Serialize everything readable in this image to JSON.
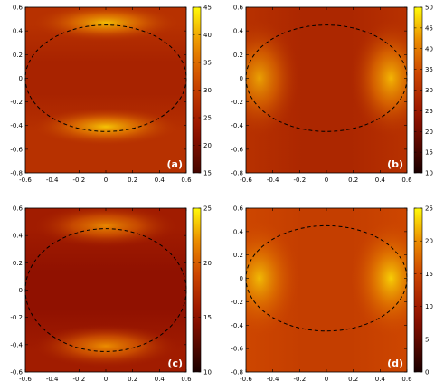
{
  "chart_data": [
    {
      "type": "heatmap",
      "panel_label": "(a)",
      "xlim": [
        -0.6,
        0.6
      ],
      "ylim": [
        -0.8,
        0.6
      ],
      "xticks": [
        "-0.6",
        "-0.4",
        "-0.2",
        "0",
        "0.2",
        "0.4",
        "0.6"
      ],
      "yticks": [
        "0.6",
        "0.4",
        "0.2",
        "0",
        "-0.2",
        "-0.4",
        "-0.6",
        "-0.8"
      ],
      "colorbar": {
        "min": 15,
        "max": 45,
        "ticks": [
          "45",
          "40",
          "35",
          "30",
          "25",
          "20",
          "15"
        ]
      },
      "hotspots": "top-bottom",
      "values": {
        "background": 30,
        "center": 28,
        "peak": 42
      },
      "ellipse": {
        "center": [
          0,
          0
        ],
        "semi_axes": [
          0.6,
          0.45
        ],
        "style": "dashed"
      }
    },
    {
      "type": "heatmap",
      "panel_label": "(b)",
      "xlim": [
        -0.6,
        0.6
      ],
      "ylim": [
        -0.8,
        0.6
      ],
      "xticks": [
        "-0.6",
        "-0.4",
        "-0.2",
        "0",
        "0.2",
        "0.4",
        "0.6"
      ],
      "yticks": [
        "0.6",
        "0.4",
        "0.2",
        "0",
        "-0.2",
        "-0.4",
        "-0.6",
        "-0.8"
      ],
      "colorbar": {
        "min": 10,
        "max": 50,
        "ticks": [
          "50",
          "45",
          "40",
          "35",
          "30",
          "25",
          "20",
          "15",
          "10"
        ]
      },
      "hotspots": "left-right",
      "values": {
        "background": 30,
        "center": 28,
        "peak": 45
      },
      "ellipse": {
        "center": [
          0,
          0
        ],
        "semi_axes": [
          0.6,
          0.45
        ],
        "style": "dashed"
      }
    },
    {
      "type": "heatmap",
      "panel_label": "(c)",
      "xlim": [
        -0.6,
        0.6
      ],
      "ylim": [
        -0.6,
        0.6
      ],
      "xticks": [
        "-0.6",
        "-0.4",
        "-0.2",
        "0",
        "0.2",
        "0.4",
        "0.6"
      ],
      "yticks": [
        "0.6",
        "0.4",
        "0.2",
        "0",
        "-0.2",
        "-0.4",
        "-0.6"
      ],
      "colorbar": {
        "min": 10,
        "max": 25,
        "ticks": [
          "25",
          "20",
          "15",
          "10"
        ]
      },
      "hotspots": "top-bottom",
      "values": {
        "background": 16,
        "center": 15,
        "peak": 22
      },
      "ellipse": {
        "center": [
          0,
          0
        ],
        "semi_axes": [
          0.6,
          0.45
        ],
        "style": "dashed"
      }
    },
    {
      "type": "heatmap",
      "panel_label": "(d)",
      "xlim": [
        -0.6,
        0.6
      ],
      "ylim": [
        -0.8,
        0.6
      ],
      "xticks": [
        "-0.6",
        "-0.4",
        "-0.2",
        "0",
        "0.2",
        "0.4",
        "0.6"
      ],
      "yticks": [
        "0.6",
        "0.4",
        "0.2",
        "0",
        "-0.2",
        "-0.4",
        "-0.6",
        "-0.8"
      ],
      "colorbar": {
        "min": 0,
        "max": 25,
        "ticks": [
          "25",
          "20",
          "15",
          "10",
          "5",
          "0"
        ]
      },
      "hotspots": "left-right",
      "values": {
        "background": 15,
        "center": 14,
        "peak": 23
      },
      "ellipse": {
        "center": [
          0,
          0
        ],
        "semi_axes": [
          0.6,
          0.45
        ],
        "style": "dashed"
      }
    }
  ]
}
